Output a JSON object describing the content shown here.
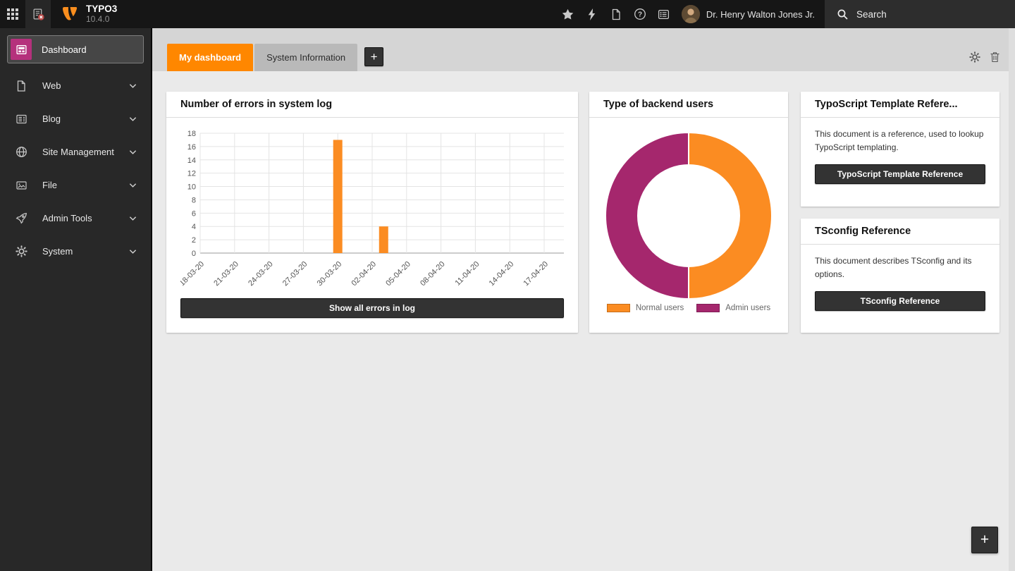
{
  "topbar": {
    "brand": {
      "name": "TYPO3",
      "version": "10.4.0"
    },
    "user": {
      "name": "Dr. Henry Walton Jones Jr."
    },
    "search": {
      "label": "Search"
    }
  },
  "sidebar": {
    "active_item": {
      "label": "Dashboard"
    },
    "items": [
      {
        "label": "Web",
        "icon": "web-page-icon"
      },
      {
        "label": "Blog",
        "icon": "blog-newspaper-icon"
      },
      {
        "label": "Site Management",
        "icon": "globe-icon"
      },
      {
        "label": "File",
        "icon": "file-image-icon"
      },
      {
        "label": "Admin Tools",
        "icon": "rocket-icon"
      },
      {
        "label": "System",
        "icon": "gear-icon"
      }
    ]
  },
  "tabbar": {
    "tabs": [
      {
        "label": "My dashboard",
        "active": true
      },
      {
        "label": "System Information",
        "active": false
      }
    ],
    "add_button": "+"
  },
  "widgets": {
    "errors": {
      "title": "Number of errors in system log",
      "button": "Show all errors in log"
    },
    "backend_users": {
      "title": "Type of backend users"
    },
    "typoscript": {
      "title": "TypoScript Template Refere...",
      "body": "This document is a reference, used to lookup TypoScript templating.",
      "button": "TypoScript Template Reference"
    },
    "tsconfig": {
      "title": "TSconfig Reference",
      "body": "This document describes TSconfig and its options.",
      "button": "TSconfig Reference"
    }
  },
  "floating_add_button": "+",
  "chart_data": [
    {
      "type": "bar",
      "title": "Number of errors in system log",
      "x_tick_labels": [
        "18-03-20",
        "21-03-20",
        "24-03-20",
        "27-03-20",
        "30-03-20",
        "02-04-20",
        "05-04-20",
        "08-04-20",
        "11-04-20",
        "14-04-20",
        "17-04-20"
      ],
      "bars": [
        {
          "date": "30-03-20",
          "value": 17
        },
        {
          "date": "03-04-20",
          "value": 4
        }
      ],
      "ylim": [
        0,
        18
      ],
      "y_tick_step": 2,
      "bar_color": "#fb8c22",
      "grid": true,
      "legend_position": "none"
    },
    {
      "type": "doughnut",
      "title": "Type of backend users",
      "labels": [
        "Normal users",
        "Admin users"
      ],
      "values": [
        50,
        50
      ],
      "colors": [
        "#fb8c22",
        "#a5276d"
      ],
      "legend_position": "bottom"
    }
  ],
  "colors": {
    "accent_orange": "#ff8700",
    "chart_orange": "#fb8c22",
    "chart_magenta": "#a5276d",
    "topbar_bg": "#161616",
    "sidebar_bg": "#282828",
    "content_bg": "#eaeaea",
    "dark_button": "#333333"
  }
}
